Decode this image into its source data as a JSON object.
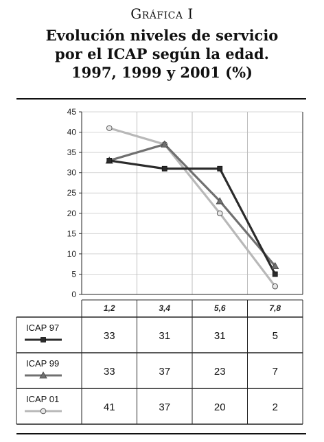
{
  "header": {
    "label": "Gráfica I",
    "title_lines": [
      "Evolución niveles de servicio",
      "por el ICAP según la edad.",
      "1997, 1999 y 2001 (%)"
    ]
  },
  "chart_data": {
    "type": "line",
    "title": "Evolución niveles de servicio por el ICAP según la edad. 1997, 1999 y 2001 (%)",
    "categories": [
      "1,2",
      "3,4",
      "5,6",
      "7,8"
    ],
    "yticks": [
      0,
      5,
      10,
      15,
      20,
      25,
      30,
      35,
      40,
      45
    ],
    "ylim": [
      0,
      45
    ],
    "grid": true,
    "legend": "table-below",
    "series": [
      {
        "name": "ICAP 97",
        "values": [
          33,
          31,
          31,
          5
        ],
        "color": "#2b2b2b",
        "marker": "square"
      },
      {
        "name": "ICAP 99",
        "values": [
          33,
          37,
          23,
          7
        ],
        "color": "#707070",
        "marker": "triangle"
      },
      {
        "name": "ICAP 01",
        "values": [
          41,
          37,
          20,
          2
        ],
        "color": "#b8b8b8",
        "marker": "circle"
      }
    ]
  }
}
